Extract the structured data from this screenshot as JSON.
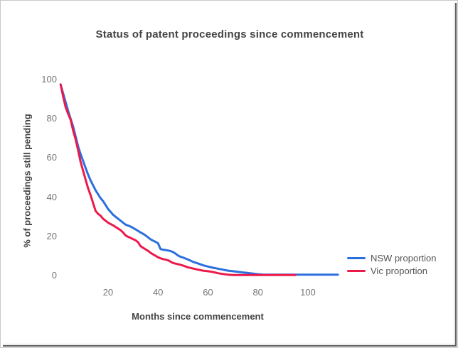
{
  "chart_data": {
    "type": "line",
    "title": "Status of patent proceedings since commencement",
    "xlabel": "Months since commencement",
    "ylabel": "% of proceedings still pending",
    "xticks": [
      20,
      40,
      60,
      80,
      100
    ],
    "yticks": [
      0,
      20,
      40,
      60,
      80,
      100
    ],
    "xlim": [
      0,
      115
    ],
    "ylim": [
      0,
      100
    ],
    "grid": false,
    "axis_lines": false,
    "legend_position": "right",
    "tick_color": "#757575",
    "title_color": "#444444",
    "series": [
      {
        "name": "NSW proportion",
        "color": "#2B6FDE",
        "points": [
          [
            1,
            97.5
          ],
          [
            2,
            93
          ],
          [
            3,
            88.5
          ],
          [
            4,
            84
          ],
          [
            5,
            80
          ],
          [
            6,
            76
          ],
          [
            7,
            71
          ],
          [
            8,
            66
          ],
          [
            9,
            62
          ],
          [
            10,
            58.5
          ],
          [
            11,
            55
          ],
          [
            12,
            51.5
          ],
          [
            13,
            48.5
          ],
          [
            14,
            46
          ],
          [
            15,
            43.5
          ],
          [
            16,
            41.5
          ],
          [
            17,
            39.5
          ],
          [
            18,
            38
          ],
          [
            19,
            36
          ],
          [
            20,
            34
          ],
          [
            21,
            32.5
          ],
          [
            22,
            31
          ],
          [
            23,
            30
          ],
          [
            24,
            29
          ],
          [
            25,
            28
          ],
          [
            26,
            27
          ],
          [
            27,
            26
          ],
          [
            28,
            25.5
          ],
          [
            29,
            25
          ],
          [
            30,
            24.3
          ],
          [
            31,
            23.6
          ],
          [
            32,
            22.8
          ],
          [
            33,
            22
          ],
          [
            34,
            21.3
          ],
          [
            35,
            20.5
          ],
          [
            36,
            19.5
          ],
          [
            37,
            18.5
          ],
          [
            38,
            17.8
          ],
          [
            39,
            17.2
          ],
          [
            40,
            16.5
          ],
          [
            41,
            13.5
          ],
          [
            42,
            13.2
          ],
          [
            43,
            13
          ],
          [
            44,
            12.8
          ],
          [
            45,
            12.5
          ],
          [
            46,
            12
          ],
          [
            47,
            11.2
          ],
          [
            48,
            10.2
          ],
          [
            49,
            9.6
          ],
          [
            50,
            9.2
          ],
          [
            52,
            8.2
          ],
          [
            54,
            7
          ],
          [
            56,
            6.2
          ],
          [
            58,
            5.3
          ],
          [
            60,
            4.6
          ],
          [
            62,
            4
          ],
          [
            64,
            3.5
          ],
          [
            66,
            3
          ],
          [
            68,
            2.5
          ],
          [
            70,
            2.2
          ],
          [
            72,
            1.9
          ],
          [
            74,
            1.6
          ],
          [
            76,
            1.3
          ],
          [
            78,
            1
          ],
          [
            80,
            0.7
          ],
          [
            82,
            0.5
          ],
          [
            85,
            0.45
          ],
          [
            90,
            0.45
          ],
          [
            95,
            0.45
          ],
          [
            100,
            0.45
          ],
          [
            105,
            0.45
          ],
          [
            110,
            0.45
          ],
          [
            112,
            0.45
          ]
        ]
      },
      {
        "name": "Vic proportion",
        "color": "#EC1A4B",
        "points": [
          [
            1,
            97.5
          ],
          [
            2,
            91.5
          ],
          [
            3,
            86
          ],
          [
            4,
            82.5
          ],
          [
            5,
            79.5
          ],
          [
            6,
            74
          ],
          [
            7,
            69.5
          ],
          [
            8,
            64
          ],
          [
            9,
            58
          ],
          [
            10,
            53.5
          ],
          [
            11,
            49
          ],
          [
            12,
            44.5
          ],
          [
            13,
            41
          ],
          [
            14,
            37
          ],
          [
            15,
            33
          ],
          [
            16,
            31.5
          ],
          [
            17,
            30.5
          ],
          [
            18,
            29
          ],
          [
            19,
            28
          ],
          [
            20,
            27
          ],
          [
            21,
            26.3
          ],
          [
            22,
            25.6
          ],
          [
            23,
            24.8
          ],
          [
            24,
            24
          ],
          [
            25,
            23.2
          ],
          [
            26,
            22
          ],
          [
            27,
            20.5
          ],
          [
            28,
            19.8
          ],
          [
            29,
            19.2
          ],
          [
            30,
            18.6
          ],
          [
            31,
            18
          ],
          [
            32,
            17
          ],
          [
            33,
            15
          ],
          [
            34,
            14.2
          ],
          [
            35,
            13.4
          ],
          [
            36,
            12.6
          ],
          [
            37,
            11.6
          ],
          [
            38,
            10.8
          ],
          [
            39,
            10.1
          ],
          [
            40,
            9.3
          ],
          [
            41,
            8.8
          ],
          [
            42,
            8.4
          ],
          [
            43,
            8.1
          ],
          [
            44,
            7.8
          ],
          [
            45,
            7.1
          ],
          [
            46,
            6.4
          ],
          [
            47,
            6.1
          ],
          [
            48,
            5.8
          ],
          [
            49,
            5.5
          ],
          [
            50,
            5.1
          ],
          [
            52,
            4.2
          ],
          [
            54,
            3.6
          ],
          [
            56,
            3
          ],
          [
            58,
            2.5
          ],
          [
            60,
            2.2
          ],
          [
            62,
            1.8
          ],
          [
            64,
            1.2
          ],
          [
            66,
            0.8
          ],
          [
            68,
            0.45
          ],
          [
            70,
            0.3
          ],
          [
            72,
            0.28
          ],
          [
            75,
            0.28
          ],
          [
            80,
            0.28
          ],
          [
            85,
            0.28
          ],
          [
            90,
            0.28
          ],
          [
            95,
            0.28
          ]
        ]
      }
    ]
  }
}
